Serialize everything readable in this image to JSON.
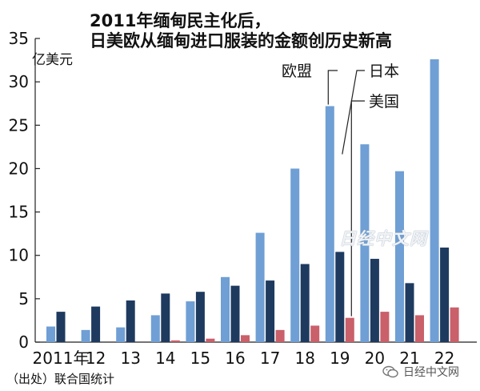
{
  "title_lines": [
    "2011年缅甸民主化后，",
    "日美欧从缅甸进口服装的金额创历史新高"
  ],
  "unit": "亿美元",
  "source": "（出处）联合国统计",
  "watermark": "日经中文网",
  "wechat_label": "日经中文网",
  "chart_data": {
    "type": "bar",
    "categories": [
      "2011年",
      "12",
      "13",
      "14",
      "15",
      "16",
      "17",
      "18",
      "19",
      "20",
      "21",
      "22"
    ],
    "series": [
      {
        "name": "欧盟",
        "color": "#6f9fd4",
        "values": [
          1.8,
          1.4,
          1.7,
          3.1,
          4.7,
          7.5,
          12.6,
          20.0,
          27.2,
          22.8,
          19.7,
          32.6
        ]
      },
      {
        "name": "日本",
        "color": "#1e3a5f",
        "values": [
          3.5,
          4.1,
          4.8,
          5.6,
          5.8,
          6.5,
          7.1,
          9.0,
          10.4,
          9.6,
          6.8,
          10.9
        ]
      },
      {
        "name": "美国",
        "color": "#c9606a",
        "values": [
          0.0,
          0.0,
          0.0,
          0.2,
          0.4,
          0.8,
          1.4,
          1.9,
          2.8,
          3.5,
          3.1,
          4.0
        ]
      }
    ],
    "ylim": [
      0,
      35
    ],
    "yticks": [
      "0",
      "5",
      "10",
      "15",
      "20",
      "25",
      "30",
      "35"
    ],
    "ytick_values": [
      0,
      5,
      10,
      15,
      20,
      25,
      30,
      35
    ],
    "grid": false,
    "legend": "top-right, labels with leader lines to 2019 bars"
  }
}
